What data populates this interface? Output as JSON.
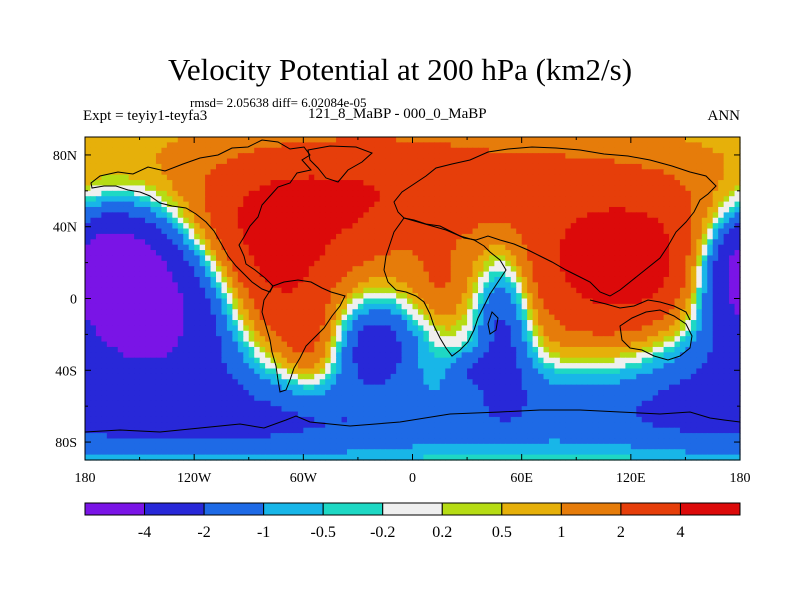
{
  "chart_data": {
    "type": "heatmap",
    "title": "Velocity Potential at 200 hPa (km2/s)",
    "stats_line": "rmsd= 2.05638 diff= 6.02084e-05",
    "left_label": "Expt = teyiy1-teyfa3",
    "center_label": "121_8_MaBP - 000_0_MaBP",
    "right_label": "ANN",
    "units": "km2/s",
    "xlim": [
      -180,
      180
    ],
    "ylim": [
      -90,
      90
    ],
    "x_ticks": [
      {
        "value": -180,
        "label": "180"
      },
      {
        "value": -120,
        "label": "120W"
      },
      {
        "value": -60,
        "label": "60W"
      },
      {
        "value": 0,
        "label": "0"
      },
      {
        "value": 60,
        "label": "60E"
      },
      {
        "value": 120,
        "label": "120E"
      },
      {
        "value": 180,
        "label": "180"
      }
    ],
    "y_ticks": [
      {
        "value": 80,
        "label": "80N"
      },
      {
        "value": 40,
        "label": "40N"
      },
      {
        "value": 0,
        "label": "0"
      },
      {
        "value": -40,
        "label": "40S"
      },
      {
        "value": -80,
        "label": "80S"
      }
    ],
    "levels": [
      "-4",
      "-2",
      "-1",
      "-0.5",
      "-0.2",
      "0.2",
      "0.5",
      "1",
      "2",
      "4"
    ],
    "colors": [
      "#7a14e6",
      "#2828d8",
      "#1e6ae6",
      "#18b6e8",
      "#1ed8c4",
      "#efefef",
      "#b6dc14",
      "#e6b00a",
      "#e67c0a",
      "#e63e0a",
      "#dc0a0a"
    ],
    "base_value": 0.6,
    "field": [
      {
        "lon": -150,
        "lat": 8,
        "amp": -4.4,
        "rlon": 35,
        "rlat": 30
      },
      {
        "lon": -135,
        "lat": -20,
        "amp": -1.6,
        "rlon": 30,
        "rlat": 25
      },
      {
        "lon": -110,
        "lat": -55,
        "amp": -2.0,
        "rlon": 70,
        "rlat": 25
      },
      {
        "lon": -172,
        "lat": 20,
        "amp": -2.6,
        "rlon": 25,
        "rlat": 18
      },
      {
        "lon": 175,
        "lat": 12,
        "amp": -2.2,
        "rlon": 20,
        "rlat": 20
      },
      {
        "lon": 160,
        "lat": -40,
        "amp": -1.4,
        "rlon": 35,
        "rlat": 30
      },
      {
        "lon": 0,
        "lat": -72,
        "amp": -1.6,
        "rlon": 180,
        "rlat": 15
      },
      {
        "lon": -20,
        "lat": -25,
        "amp": -3.0,
        "rlon": 18,
        "rlat": 18
      },
      {
        "lon": 50,
        "lat": -12,
        "amp": -3.2,
        "rlon": 12,
        "rlat": 30
      },
      {
        "lon": 60,
        "lat": -45,
        "amp": -0.6,
        "rlon": 25,
        "rlat": 12
      },
      {
        "lon": 100,
        "lat": -55,
        "amp": -0.8,
        "rlon": 50,
        "rlat": 15
      },
      {
        "lon": 30,
        "lat": -40,
        "amp": -1.2,
        "rlon": 10,
        "rlat": 8
      },
      {
        "lon": -80,
        "lat": 38,
        "amp": 3.4,
        "rlon": 32,
        "rlat": 25
      },
      {
        "lon": -75,
        "lat": 0,
        "amp": 2.4,
        "rlon": 18,
        "rlat": 28
      },
      {
        "lon": -55,
        "lat": -25,
        "amp": 2.0,
        "rlon": 12,
        "rlat": 18
      },
      {
        "lon": -30,
        "lat": 55,
        "amp": 2.0,
        "rlon": 40,
        "rlat": 25
      },
      {
        "lon": 30,
        "lat": 65,
        "amp": 1.6,
        "rlon": 60,
        "rlat": 20
      },
      {
        "lon": 15,
        "lat": 8,
        "amp": 1.2,
        "rlon": 12,
        "rlat": 15
      },
      {
        "lon": 120,
        "lat": 12,
        "amp": 4.4,
        "rlon": 40,
        "rlat": 25
      },
      {
        "lon": 105,
        "lat": 45,
        "amp": 1.4,
        "rlon": 40,
        "rlat": 25
      },
      {
        "lon": 150,
        "lat": 30,
        "amp": 1.0,
        "rlon": 25,
        "rlat": 25
      },
      {
        "lon": -140,
        "lat": 65,
        "amp": 0.6,
        "rlon": 40,
        "rlat": 20
      },
      {
        "lon": -170,
        "lat": 45,
        "amp": -0.8,
        "rlon": 25,
        "rlat": 15
      }
    ]
  }
}
